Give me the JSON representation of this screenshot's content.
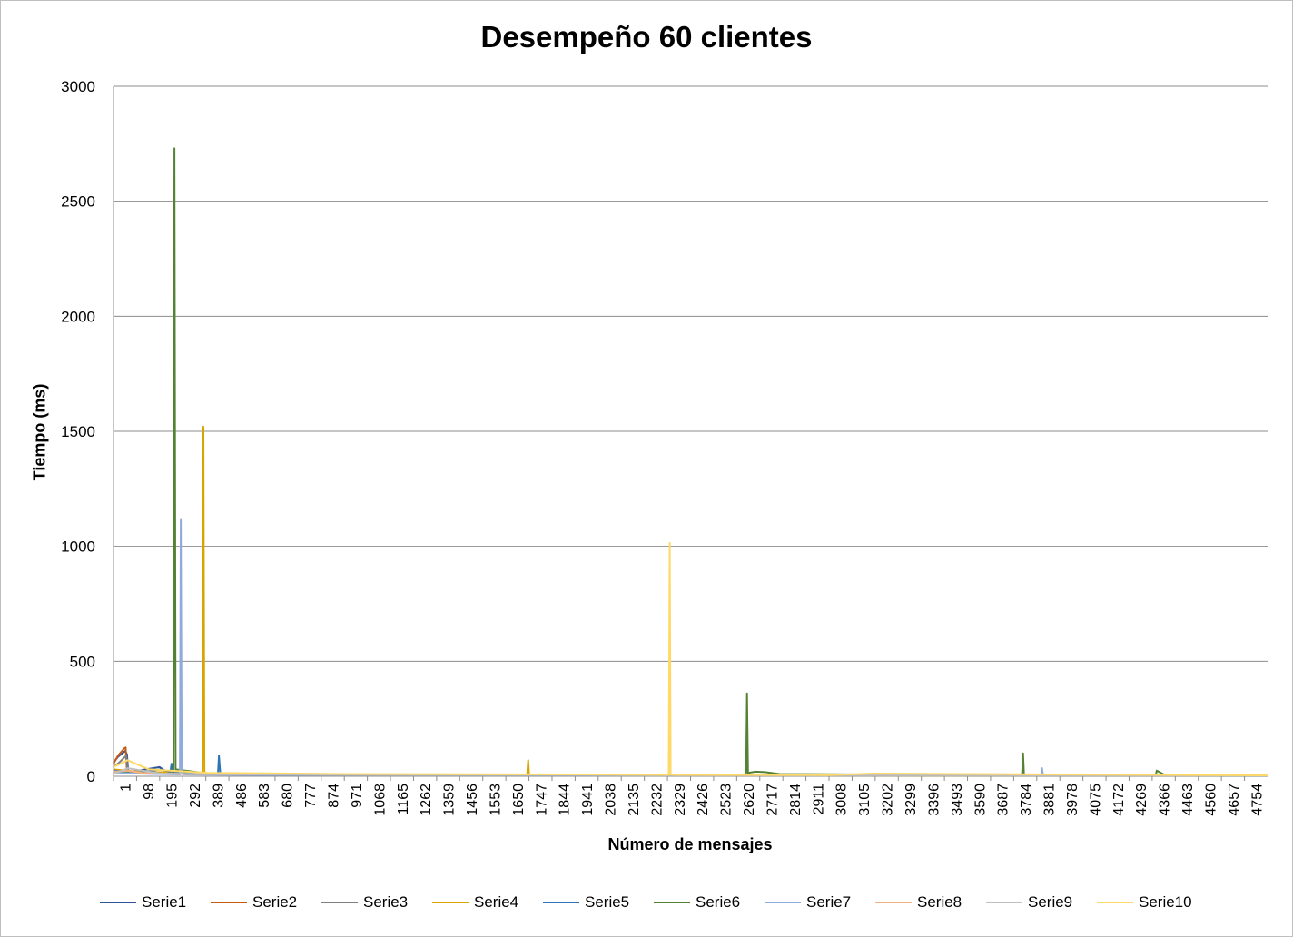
{
  "chart_data": {
    "type": "line",
    "title": "Desempeño 60 clientes",
    "xlabel": "Número de mensajes",
    "ylabel": "Tiempo (ms)",
    "ylim": [
      0,
      3000
    ],
    "xlim": [
      1,
      4852
    ],
    "yticks": [
      "0",
      "500",
      "1000",
      "1500",
      "2000",
      "2500",
      "3000"
    ],
    "xticks": [
      "1",
      "98",
      "195",
      "292",
      "389",
      "486",
      "583",
      "680",
      "777",
      "874",
      "971",
      "1068",
      "1165",
      "1262",
      "1359",
      "1456",
      "1553",
      "1650",
      "1747",
      "1844",
      "1941",
      "2038",
      "2135",
      "2232",
      "2329",
      "2426",
      "2523",
      "2620",
      "2717",
      "2814",
      "2911",
      "3008",
      "3105",
      "3202",
      "3299",
      "3396",
      "3493",
      "3590",
      "3687",
      "3784",
      "3881",
      "3978",
      "4075",
      "4172",
      "4269",
      "4366",
      "4463",
      "4560",
      "4657",
      "4754"
    ],
    "grid": true,
    "legend_position": "bottom",
    "series": [
      {
        "name": "Serie1",
        "color": "#2f5597",
        "x": [
          1,
          20,
          50,
          58,
          62,
          80,
          195,
          230,
          260,
          340,
          420,
          500,
          800,
          1500,
          3000,
          4852
        ],
        "y": [
          60,
          85,
          110,
          95,
          25,
          20,
          40,
          15,
          10,
          12,
          8,
          10,
          8,
          6,
          5,
          4
        ]
      },
      {
        "name": "Serie2",
        "color": "#c55a11",
        "x": [
          1,
          20,
          45,
          52,
          57,
          70,
          200,
          300,
          500,
          1000,
          2000,
          4852
        ],
        "y": [
          55,
          90,
          120,
          125,
          30,
          18,
          15,
          12,
          9,
          7,
          5,
          4
        ]
      },
      {
        "name": "Serie3",
        "color": "#7f7f7f",
        "x": [
          1,
          25,
          50,
          55,
          60,
          90,
          300,
          600,
          1200,
          2500,
          4852
        ],
        "y": [
          40,
          60,
          85,
          90,
          20,
          12,
          10,
          8,
          6,
          5,
          4
        ]
      },
      {
        "name": "Serie4",
        "color": "#d9a400",
        "x": [
          1,
          100,
          300,
          375,
          379,
          383,
          390,
          600,
          1000,
          1740,
          1744,
          1748,
          1800,
          2500,
          4852
        ],
        "y": [
          30,
          20,
          15,
          10,
          1520,
          20,
          12,
          8,
          6,
          5,
          70,
          6,
          5,
          4,
          3
        ]
      },
      {
        "name": "Serie5",
        "color": "#2e75b6",
        "x": [
          1,
          100,
          200,
          240,
          245,
          250,
          400,
          440,
          444,
          450,
          600,
          1000,
          2000,
          3000,
          4852
        ],
        "y": [
          25,
          15,
          30,
          20,
          55,
          15,
          10,
          8,
          90,
          12,
          8,
          6,
          5,
          4,
          3
        ]
      },
      {
        "name": "Serie6",
        "color": "#548235",
        "x": [
          1,
          150,
          250,
          253,
          257,
          262,
          400,
          800,
          1500,
          2600,
          2660,
          2664,
          2668,
          2700,
          2740,
          2800,
          3500,
          3820,
          3824,
          3828,
          3900,
          4300,
          4382,
          4386,
          4420,
          4600,
          4852
        ],
        "y": [
          20,
          15,
          10,
          15,
          2730,
          30,
          12,
          8,
          6,
          5,
          5,
          360,
          15,
          20,
          18,
          10,
          6,
          8,
          100,
          8,
          6,
          5,
          5,
          25,
          6,
          5,
          4
        ]
      },
      {
        "name": "Serie7",
        "color": "#8faadc",
        "x": [
          1,
          200,
          280,
          284,
          288,
          300,
          600,
          1200,
          2500,
          3850,
          3900,
          3904,
          3908,
          4000,
          4852
        ],
        "y": [
          15,
          10,
          8,
          1115,
          10,
          8,
          6,
          5,
          4,
          5,
          4,
          35,
          6,
          5,
          4
        ]
      },
      {
        "name": "Serie8",
        "color": "#f4b183",
        "x": [
          1,
          60,
          120,
          300,
          700,
          1500,
          3000,
          4852
        ],
        "y": [
          20,
          25,
          15,
          10,
          8,
          6,
          5,
          4
        ]
      },
      {
        "name": "Serie9",
        "color": "#bfbfbf",
        "x": [
          1,
          50,
          60,
          200,
          600,
          1500,
          3000,
          4852
        ],
        "y": [
          10,
          30,
          35,
          12,
          8,
          6,
          5,
          4
        ]
      },
      {
        "name": "Serie10",
        "color": "#ffd966",
        "x": [
          1,
          60,
          150,
          400,
          1000,
          2000,
          2335,
          2339,
          2343,
          2360,
          3000,
          3200,
          4852
        ],
        "y": [
          40,
          70,
          30,
          15,
          10,
          8,
          6,
          1015,
          8,
          6,
          5,
          12,
          4
        ]
      }
    ]
  }
}
